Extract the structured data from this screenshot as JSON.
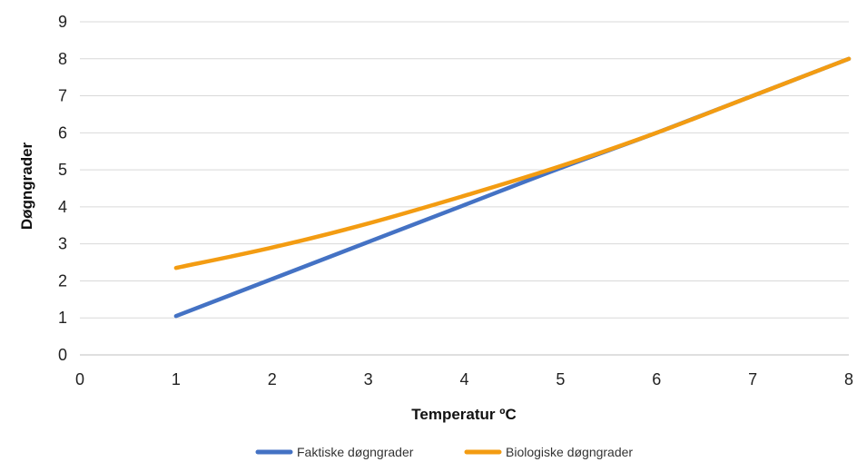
{
  "chart_data": {
    "type": "line",
    "title": "",
    "xlabel": "Temperatur ºC",
    "ylabel": "Døgngrader",
    "xlim": [
      0,
      8
    ],
    "ylim": [
      0,
      9
    ],
    "x_ticks": [
      "0",
      "1",
      "2",
      "3",
      "4",
      "5",
      "6",
      "7",
      "8"
    ],
    "y_ticks": [
      "0",
      "1",
      "2",
      "3",
      "4",
      "5",
      "6",
      "7",
      "8",
      "9"
    ],
    "grid": "horizontal",
    "legend_position": "bottom",
    "series": [
      {
        "name": "Faktiske døgngrader",
        "color": "#4472C4",
        "points": [
          [
            1,
            1.05
          ],
          [
            2,
            2.05
          ],
          [
            3,
            3.05
          ],
          [
            4,
            4.05
          ],
          [
            5,
            5.05
          ],
          [
            6,
            6.0
          ],
          [
            7,
            7.0
          ],
          [
            8,
            8.0
          ]
        ]
      },
      {
        "name": "Biologiske døgngrader",
        "color": "#F39C12",
        "points": [
          [
            1,
            2.35
          ],
          [
            2,
            2.9
          ],
          [
            3,
            3.55
          ],
          [
            4,
            4.3
          ],
          [
            5,
            5.1
          ],
          [
            6,
            6.0
          ],
          [
            7,
            7.0
          ],
          [
            8,
            8.0
          ]
        ]
      }
    ]
  }
}
